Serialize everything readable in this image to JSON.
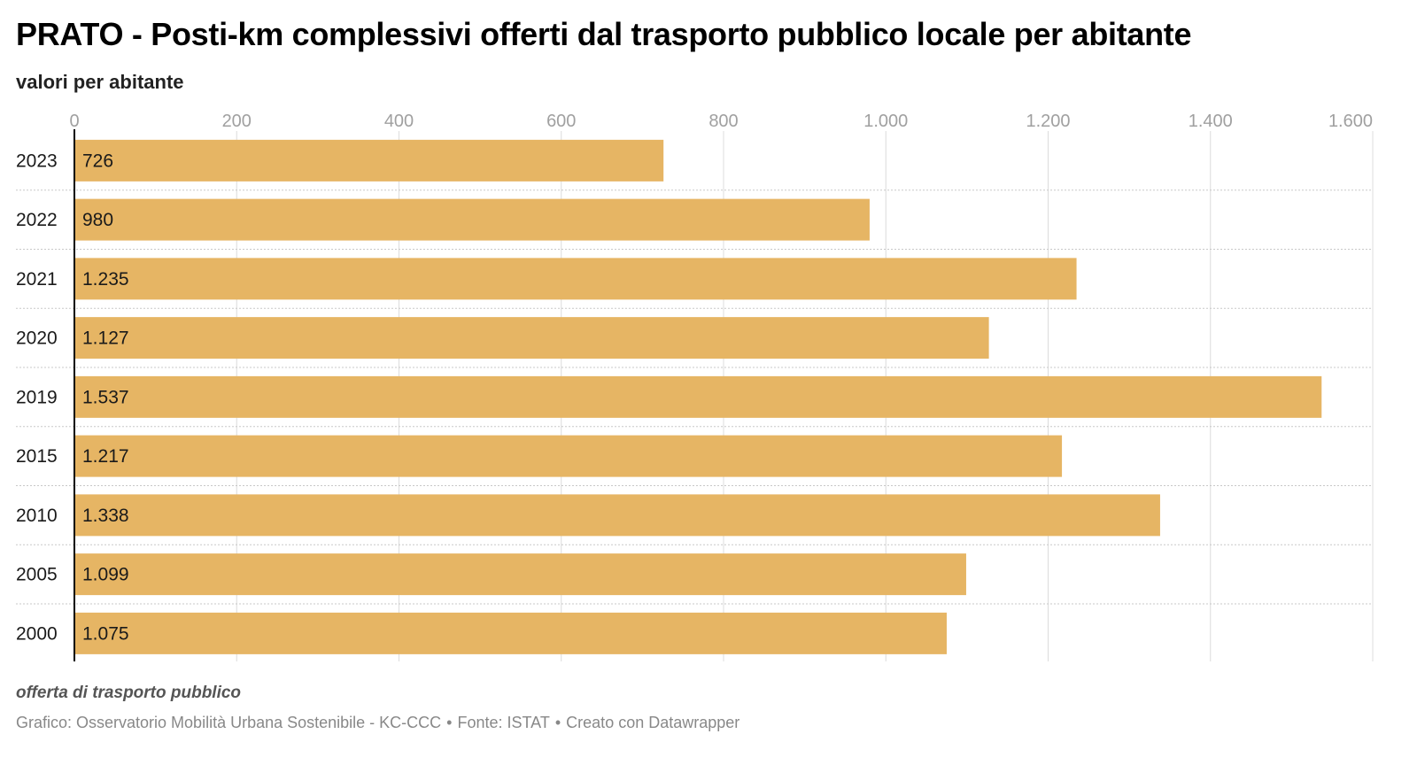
{
  "title": "PRATO - Posti-km complessivi offerti dal trasporto pubblico locale per abitante",
  "subtitle": "valori per abitante",
  "notes": "offerta di trasporto pubblico",
  "source": {
    "chart_by": "Grafico: Osservatorio Mobilità Urbana Sostenibile - KC-CCC",
    "data_source": "Fonte: ISTAT",
    "tool": "Creato con Datawrapper",
    "separator": "•"
  },
  "colors": {
    "bar": "#e6b564",
    "grid": "#dcdcdc",
    "row_divider": "#c8c8c8",
    "axis_line": "#000000",
    "tick_text": "#a0a0a0",
    "label_text": "#1a1a1a"
  },
  "chart_data": {
    "type": "bar",
    "orientation": "horizontal",
    "title": "PRATO - Posti-km complessivi offerti dal trasporto pubblico locale per abitante",
    "subtitle": "valori per abitante",
    "categories": [
      "2023",
      "2022",
      "2021",
      "2020",
      "2019",
      "2015",
      "2010",
      "2005",
      "2000"
    ],
    "values": [
      726,
      980,
      1235,
      1127,
      1537,
      1217,
      1338,
      1099,
      1075
    ],
    "value_labels": [
      "726",
      "980",
      "1.235",
      "1.127",
      "1.537",
      "1.217",
      "1.338",
      "1.099",
      "1.075"
    ],
    "x_ticks": [
      0,
      200,
      400,
      600,
      800,
      1000,
      1200,
      1400,
      1600
    ],
    "x_tick_labels": [
      "0",
      "200",
      "400",
      "600",
      "800",
      "1.000",
      "1.200",
      "1.400",
      "1.600"
    ],
    "xlim": [
      0,
      1600
    ],
    "grid": true,
    "axis_position": "top"
  }
}
